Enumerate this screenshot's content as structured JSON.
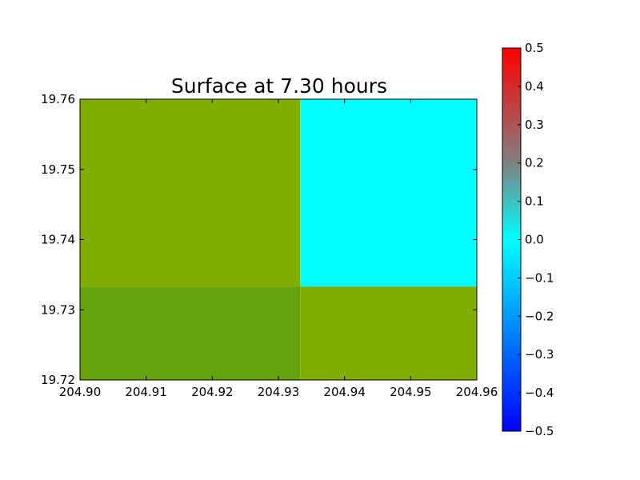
{
  "chart_data": {
    "type": "heatmap",
    "title": "Surface at 7.30 hours",
    "xlabel": "",
    "ylabel": "",
    "xlim": [
      204.9,
      204.96
    ],
    "ylim": [
      19.72,
      19.76
    ],
    "x_ticks": [
      "204.90",
      "204.91",
      "204.92",
      "204.93",
      "204.94",
      "204.95",
      "204.96"
    ],
    "y_ticks": [
      "19.72",
      "19.73",
      "19.74",
      "19.75",
      "19.76"
    ],
    "cells": [
      {
        "x0": 204.9,
        "x1": 204.9333,
        "y0": 19.7333,
        "y1": 19.76,
        "color": "#7fae00"
      },
      {
        "x0": 204.9333,
        "x1": 204.96,
        "y0": 19.7333,
        "y1": 19.76,
        "color": "#00ffff"
      },
      {
        "x0": 204.9,
        "x1": 204.9333,
        "y0": 19.72,
        "y1": 19.7333,
        "color": "#66a10e"
      },
      {
        "x0": 204.9333,
        "x1": 204.96,
        "y0": 19.72,
        "y1": 19.7333,
        "color": "#7fae00"
      }
    ],
    "colorbar": {
      "min": -0.5,
      "max": 0.5,
      "ticks": [
        "0.5",
        "0.4",
        "0.3",
        "0.2",
        "0.1",
        "0.0",
        "−0.1",
        "−0.2",
        "−0.3",
        "−0.4",
        "−0.5"
      ],
      "colors": {
        "low": "#0000ff",
        "mid": "#00ffff",
        "high": "#ff0000"
      }
    }
  }
}
